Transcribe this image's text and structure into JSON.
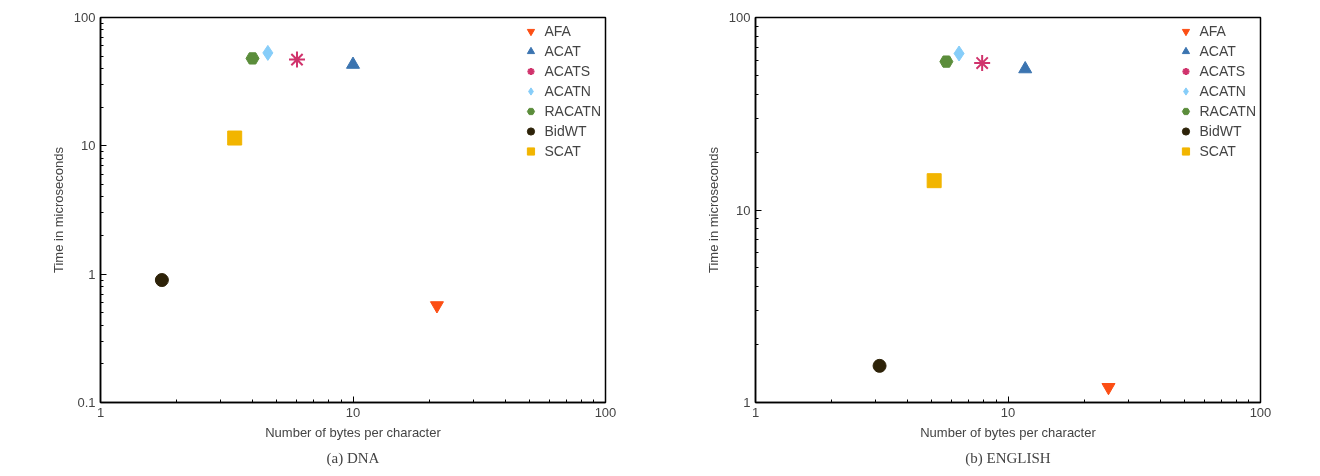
{
  "chart_data": [
    {
      "type": "scatter",
      "title": "(a) DNA",
      "xlabel": "Number of bytes per character",
      "ylabel": "Time in microseconds",
      "log": "xy",
      "grid": false,
      "legend": "top right",
      "xlim": [
        1,
        100
      ],
      "ylim": [
        0.1,
        100
      ],
      "xticks": [
        1,
        10,
        100
      ],
      "yticks": [
        0.1,
        1,
        10,
        100
      ],
      "series": [
        {
          "name": "AFA",
          "color": "#fc4e14",
          "marker": "triangle-down",
          "x": [
            21.5
          ],
          "values": [
            0.57
          ]
        },
        {
          "name": "ACAT",
          "color": "#3b74b0",
          "marker": "triangle",
          "x": [
            10
          ],
          "values": [
            43
          ]
        },
        {
          "name": "ACATS",
          "color": "#d0336c",
          "marker": "cross",
          "x": [
            6.0
          ],
          "values": [
            47
          ]
        },
        {
          "name": "ACATN",
          "color": "#86cdf9",
          "marker": "diamond",
          "x": [
            4.6
          ],
          "values": [
            53
          ]
        },
        {
          "name": "RACATN",
          "color": "#5b8d3b",
          "x": [
            4.0
          ],
          "values": [
            48
          ]
        },
        {
          "name": "BidWT",
          "color": "#2d2208",
          "marker": "circle",
          "x": [
            1.75
          ],
          "values": [
            0.9
          ]
        },
        {
          "name": "SCAT",
          "color": "#f2b500",
          "marker": "square",
          "x": [
            3.4
          ],
          "values": [
            11.5
          ]
        }
      ]
    },
    {
      "type": "scatter",
      "title": "(b) ENGLISH",
      "xlabel": "Number of bytes per character",
      "ylabel": "Time in microseconds",
      "log": "xy",
      "grid": false,
      "legend": "top right",
      "xlim": [
        1,
        100
      ],
      "ylim": [
        1,
        100
      ],
      "xticks": [
        1,
        10,
        100
      ],
      "yticks": [
        1,
        10,
        100
      ],
      "series": [
        {
          "name": "AFA",
          "color": "#fc4e14",
          "marker": "triangle-down",
          "x": [
            25
          ],
          "values": [
            1.2
          ]
        },
        {
          "name": "ACAT",
          "color": "#3b74b0",
          "marker": "triangle",
          "x": [
            11.7
          ],
          "values": [
            54
          ]
        },
        {
          "name": "ACATS",
          "color": "#d0336c",
          "marker": "cross",
          "x": [
            7.9
          ],
          "values": [
            58
          ]
        },
        {
          "name": "ACATN",
          "color": "#86cdf9",
          "marker": "diamond",
          "x": [
            6.4
          ],
          "values": [
            65
          ]
        },
        {
          "name": "RACATN",
          "color": "#5b8d3b",
          "x": [
            5.7
          ],
          "values": [
            59
          ]
        },
        {
          "name": "BidWT",
          "color": "#2d2208",
          "marker": "circle",
          "x": [
            3.1
          ],
          "values": [
            1.55
          ]
        },
        {
          "name": "SCAT",
          "color": "#f2b500",
          "marker": "square",
          "x": [
            5.1
          ],
          "values": [
            14.2
          ]
        }
      ]
    }
  ]
}
